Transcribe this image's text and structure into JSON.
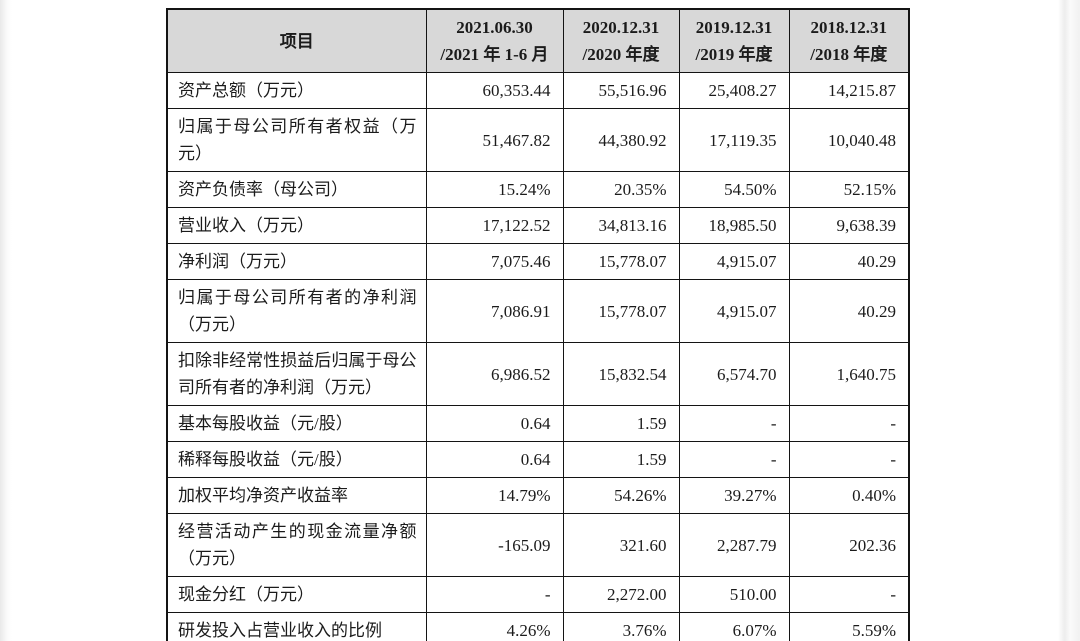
{
  "table": {
    "columns": [
      {
        "line1": "项目",
        "line2": ""
      },
      {
        "line1": "2021.06.30",
        "line2": "/2021 年 1-6 月"
      },
      {
        "line1": "2020.12.31",
        "line2": "/2020 年度"
      },
      {
        "line1": "2019.12.31",
        "line2": "/2019 年度"
      },
      {
        "line1": "2018.12.31",
        "line2": "/2018 年度"
      }
    ],
    "rows": [
      {
        "item": "资产总额（万元）",
        "values": [
          "60,353.44",
          "55,516.96",
          "25,408.27",
          "14,215.87"
        ]
      },
      {
        "item": "归属于母公司所有者权益（万元）",
        "values": [
          "51,467.82",
          "44,380.92",
          "17,119.35",
          "10,040.48"
        ]
      },
      {
        "item": "资产负债率（母公司）",
        "values": [
          "15.24%",
          "20.35%",
          "54.50%",
          "52.15%"
        ]
      },
      {
        "item": "营业收入（万元）",
        "values": [
          "17,122.52",
          "34,813.16",
          "18,985.50",
          "9,638.39"
        ]
      },
      {
        "item": "净利润（万元）",
        "values": [
          "7,075.46",
          "15,778.07",
          "4,915.07",
          "40.29"
        ]
      },
      {
        "item": "归属于母公司所有者的净利润（万元）",
        "values": [
          "7,086.91",
          "15,778.07",
          "4,915.07",
          "40.29"
        ]
      },
      {
        "item": "扣除非经常性损益后归属于母公司所有者的净利润（万元）",
        "values": [
          "6,986.52",
          "15,832.54",
          "6,574.70",
          "1,640.75"
        ]
      },
      {
        "item": "基本每股收益（元/股）",
        "values": [
          "0.64",
          "1.59",
          "-",
          "-"
        ]
      },
      {
        "item": "稀释每股收益（元/股）",
        "values": [
          "0.64",
          "1.59",
          "-",
          "-"
        ]
      },
      {
        "item": "加权平均净资产收益率",
        "values": [
          "14.79%",
          "54.26%",
          "39.27%",
          "0.40%"
        ]
      },
      {
        "item": "经营活动产生的现金流量净额（万元）",
        "values": [
          "-165.09",
          "321.60",
          "2,287.79",
          "202.36"
        ]
      },
      {
        "item": "现金分红（万元）",
        "values": [
          "-",
          "2,272.00",
          "510.00",
          "-"
        ]
      },
      {
        "item": "研发投入占营业收入的比例",
        "values": [
          "4.26%",
          "3.76%",
          "6.07%",
          "5.59%"
        ]
      }
    ],
    "colors": {
      "header_bg": "#d8d8d8",
      "border": "#141414",
      "text": "#1b1b1b"
    }
  }
}
